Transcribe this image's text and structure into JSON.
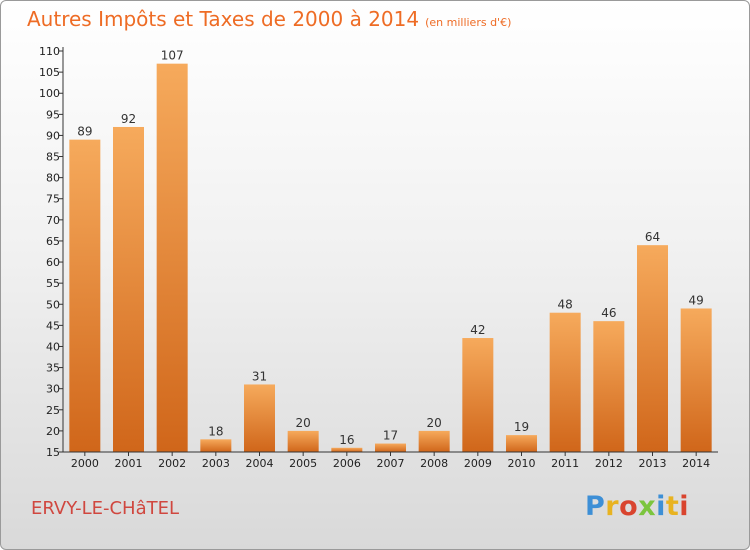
{
  "title": "Autres Impôts et Taxes de 2000 à 2014",
  "subtitle": "(en milliers d'€)",
  "commune": "ERVY-LE-CHâTEL",
  "logo": {
    "text": "Proxiti",
    "colors": [
      "#3d8fd6",
      "#e8b321",
      "#d9442e",
      "#7cc53e",
      "#3d8fd6",
      "#e8b321",
      "#d9442e"
    ]
  },
  "colors": {
    "accent": "#ee6c25",
    "commune": "#d0473f",
    "bar_top": "#f6aa5c",
    "bar_bottom": "#d0661a"
  },
  "chart_data": {
    "type": "bar",
    "title": "Autres Impôts et Taxes de 2000 à 2014",
    "subtitle": "(en milliers d'€)",
    "categories": [
      "2000",
      "2001",
      "2002",
      "2003",
      "2004",
      "2005",
      "2006",
      "2007",
      "2008",
      "2009",
      "2010",
      "2011",
      "2012",
      "2013",
      "2014"
    ],
    "values": [
      89,
      92,
      107,
      18,
      31,
      20,
      16,
      17,
      20,
      42,
      19,
      48,
      46,
      64,
      49
    ],
    "ylim": [
      15,
      110
    ],
    "yticks": [
      15,
      20,
      25,
      30,
      35,
      40,
      45,
      50,
      55,
      60,
      65,
      70,
      75,
      80,
      85,
      90,
      95,
      100,
      105,
      110
    ],
    "grid": false,
    "data_labels": true
  }
}
